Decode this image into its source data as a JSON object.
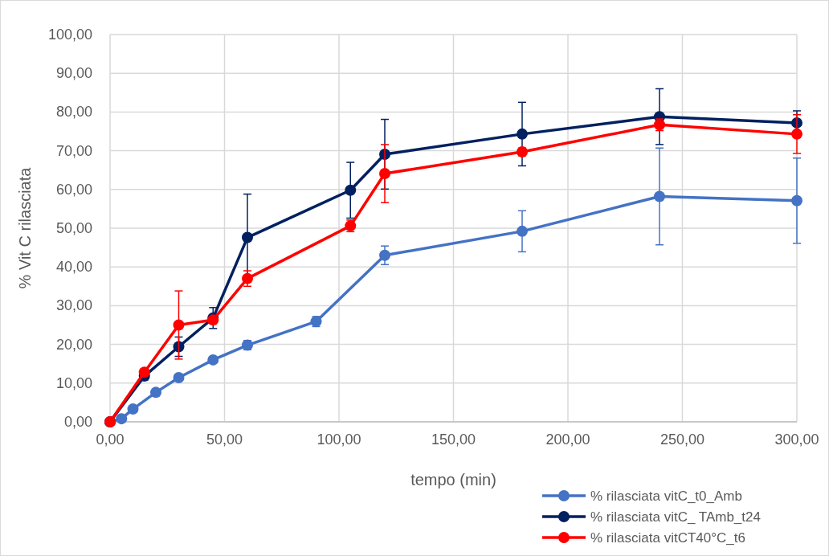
{
  "chart_data": {
    "type": "line",
    "xlabel": "tempo (min)",
    "ylabel": "% Vit C rilasciata",
    "xlim": [
      0,
      300
    ],
    "xticks": [
      {
        "value": 0,
        "label": "0,00"
      },
      {
        "value": 50,
        "label": "50,00"
      },
      {
        "value": 100,
        "label": "100,00"
      },
      {
        "value": 150,
        "label": "150,00"
      },
      {
        "value": 200,
        "label": "200,00"
      },
      {
        "value": 250,
        "label": "250,00"
      },
      {
        "value": 300,
        "label": "300,00"
      }
    ],
    "ylim": [
      0,
      100
    ],
    "yticks": [
      {
        "value": 0,
        "label": "0,00"
      },
      {
        "value": 10,
        "label": "10,00"
      },
      {
        "value": 20,
        "label": "20,00"
      },
      {
        "value": 30,
        "label": "30,00"
      },
      {
        "value": 40,
        "label": "40,00"
      },
      {
        "value": 50,
        "label": "50,00"
      },
      {
        "value": 60,
        "label": "60,00"
      },
      {
        "value": 70,
        "label": "70,00"
      },
      {
        "value": 80,
        "label": "80,00"
      },
      {
        "value": 90,
        "label": "90,00"
      },
      {
        "value": 100,
        "label": "100,00"
      }
    ],
    "grid": true,
    "legend": "bottom right",
    "marker": "circle",
    "line_style": "solid",
    "series": [
      {
        "name": "% rilasciata vitC_t0_Amb",
        "color": "#4472c4",
        "x": [
          0,
          5,
          10,
          20,
          30,
          45,
          60,
          90,
          120,
          180,
          240,
          300
        ],
        "values": [
          0,
          0.8,
          3.3,
          7.6,
          11.4,
          16,
          19.8,
          25.9,
          43,
          49.2,
          58.2,
          57.1
        ],
        "errors": [
          null,
          null,
          null,
          null,
          null,
          null,
          1.2,
          1.3,
          2.4,
          5.3,
          12.5,
          11
        ]
      },
      {
        "name": "% rilasciata vitC_ TAmb_t24",
        "color": "#002060",
        "x": [
          0,
          15,
          30,
          45,
          60,
          105,
          120,
          180,
          240,
          300
        ],
        "values": [
          0,
          11.8,
          19.4,
          26.8,
          47.6,
          59.8,
          69.1,
          74.3,
          78.8,
          77.2
        ],
        "errors": [
          null,
          1,
          2.5,
          2.7,
          11.2,
          7.2,
          9,
          8.2,
          7.2,
          3.1
        ]
      },
      {
        "name": "% rilasciata vitCT40°C_t6",
        "color": "#ff0000",
        "x": [
          0,
          15,
          30,
          45,
          60,
          105,
          120,
          180,
          240,
          300
        ],
        "values": [
          0,
          12.8,
          25,
          26.3,
          37,
          50.6,
          64.1,
          69.7,
          76.7,
          74.3
        ],
        "errors": [
          null,
          null,
          8.8,
          null,
          2,
          1.5,
          7.5,
          1,
          1.5,
          5
        ]
      }
    ]
  }
}
